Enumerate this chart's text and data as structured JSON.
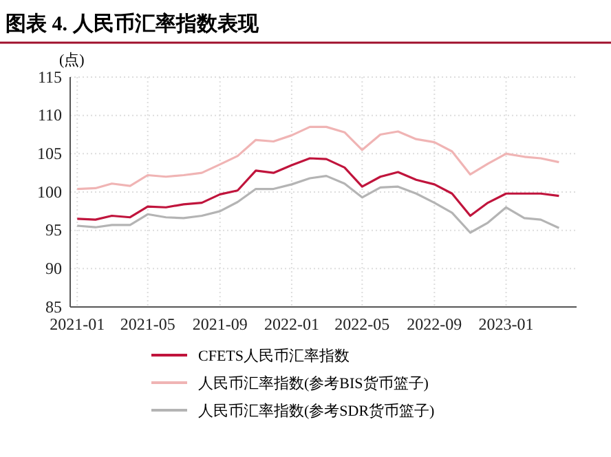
{
  "chart_data": {
    "type": "line",
    "title": "图表 4. 人民币汇率指数表现",
    "ylabel": "(点)",
    "x": [
      "2021-01",
      "2021-02",
      "2021-03",
      "2021-04",
      "2021-05",
      "2021-06",
      "2021-07",
      "2021-08",
      "2021-09",
      "2021-10",
      "2021-11",
      "2021-12",
      "2022-01",
      "2022-02",
      "2022-03",
      "2022-04",
      "2022-05",
      "2022-06",
      "2022-07",
      "2022-08",
      "2022-09",
      "2022-10",
      "2022-11",
      "2022-12",
      "2023-01",
      "2023-02",
      "2023-03",
      "2023-04"
    ],
    "xlim": [
      "2020-12-20",
      "2023-05-01"
    ],
    "xticks": [
      {
        "value": "2021-01",
        "label": "2021-01"
      },
      {
        "value": "2021-05",
        "label": "2021-05"
      },
      {
        "value": "2021-09",
        "label": "2021-09"
      },
      {
        "value": "2022-01",
        "label": "2022-01"
      },
      {
        "value": "2022-05",
        "label": "2022-05"
      },
      {
        "value": "2022-09",
        "label": "2022-09"
      },
      {
        "value": "2023-01",
        "label": "2023-01"
      }
    ],
    "ylim": [
      85,
      115
    ],
    "yticks": [
      85,
      90,
      95,
      100,
      105,
      110,
      115
    ],
    "grid": true,
    "legend": "bottom",
    "line_style": "solid",
    "marker": "none",
    "series": [
      {
        "name": "CFETS人民币汇率指数",
        "color": "#c0143c",
        "values": [
          96.5,
          96.4,
          96.9,
          96.7,
          98.1,
          98.0,
          98.4,
          98.6,
          99.7,
          100.2,
          102.8,
          102.5,
          103.5,
          104.4,
          104.3,
          103.2,
          100.7,
          102.0,
          102.6,
          101.6,
          101.0,
          99.8,
          96.9,
          98.6,
          99.8,
          99.8,
          99.8,
          99.5
        ]
      },
      {
        "name": "人民币汇率指数(参考BIS货币篮子)",
        "color": "#f0b4b4",
        "values": [
          100.4,
          100.5,
          101.1,
          100.8,
          102.2,
          102.0,
          102.2,
          102.5,
          103.6,
          104.7,
          106.8,
          106.6,
          107.4,
          108.5,
          108.5,
          107.8,
          105.5,
          107.5,
          107.9,
          106.9,
          106.5,
          105.3,
          102.3,
          103.7,
          105.0,
          104.6,
          104.4,
          103.9
        ]
      },
      {
        "name": "人民币汇率指数(参考SDR货币篮子)",
        "color": "#b4b4b4",
        "values": [
          95.6,
          95.4,
          95.7,
          95.7,
          97.1,
          96.7,
          96.6,
          96.9,
          97.5,
          98.7,
          100.4,
          100.4,
          101.0,
          101.8,
          102.1,
          101.1,
          99.3,
          100.6,
          100.7,
          99.8,
          98.6,
          97.3,
          94.7,
          96.0,
          98.0,
          96.6,
          96.4,
          95.3
        ]
      }
    ]
  }
}
